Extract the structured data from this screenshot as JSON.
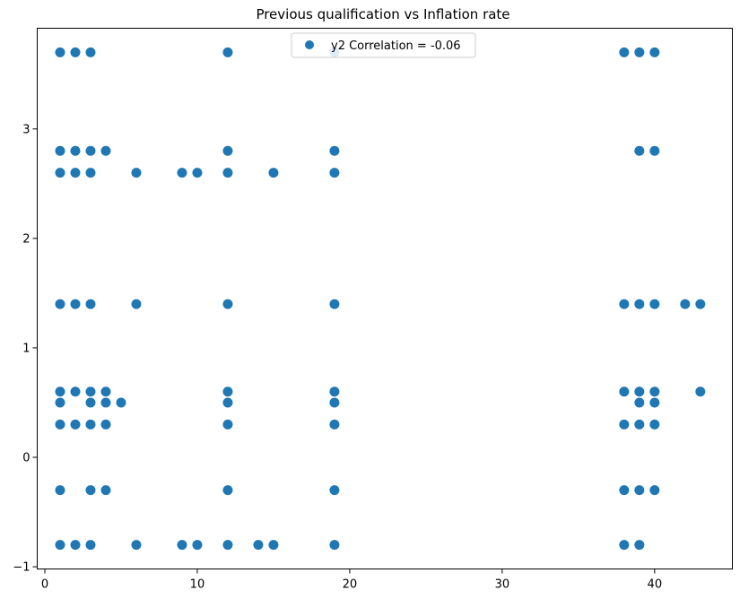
{
  "chart_data": {
    "type": "scatter",
    "title": "Previous qualification vs Inflation rate",
    "xlabel": "",
    "ylabel": "",
    "xlim": [
      -0.5,
      45.1
    ],
    "ylim": [
      -1.02,
      3.92
    ],
    "xticks": [
      0,
      10,
      20,
      30,
      40
    ],
    "yticks": [
      -1,
      0,
      1,
      2,
      3
    ],
    "grid": false,
    "legend_position": "upper-center",
    "series": [
      {
        "name": "y2 Correlation = -0.06",
        "color": "#1f77b4",
        "points": [
          [
            1,
            3.7
          ],
          [
            2,
            3.7
          ],
          [
            3,
            3.7
          ],
          [
            12,
            3.7
          ],
          [
            19,
            3.7
          ],
          [
            38,
            3.7
          ],
          [
            39,
            3.7
          ],
          [
            40,
            3.7
          ],
          [
            1,
            2.8
          ],
          [
            2,
            2.8
          ],
          [
            3,
            2.8
          ],
          [
            4,
            2.8
          ],
          [
            12,
            2.8
          ],
          [
            19,
            2.8
          ],
          [
            39,
            2.8
          ],
          [
            40,
            2.8
          ],
          [
            1,
            2.6
          ],
          [
            2,
            2.6
          ],
          [
            3,
            2.6
          ],
          [
            6,
            2.6
          ],
          [
            9,
            2.6
          ],
          [
            10,
            2.6
          ],
          [
            12,
            2.6
          ],
          [
            15,
            2.6
          ],
          [
            19,
            2.6
          ],
          [
            1,
            1.4
          ],
          [
            2,
            1.4
          ],
          [
            3,
            1.4
          ],
          [
            6,
            1.4
          ],
          [
            12,
            1.4
          ],
          [
            19,
            1.4
          ],
          [
            38,
            1.4
          ],
          [
            39,
            1.4
          ],
          [
            40,
            1.4
          ],
          [
            42,
            1.4
          ],
          [
            43,
            1.4
          ],
          [
            1,
            0.6
          ],
          [
            2,
            0.6
          ],
          [
            3,
            0.6
          ],
          [
            4,
            0.6
          ],
          [
            12,
            0.6
          ],
          [
            19,
            0.6
          ],
          [
            38,
            0.6
          ],
          [
            39,
            0.6
          ],
          [
            40,
            0.6
          ],
          [
            43,
            0.6
          ],
          [
            1,
            0.5
          ],
          [
            3,
            0.5
          ],
          [
            4,
            0.5
          ],
          [
            5,
            0.5
          ],
          [
            12,
            0.5
          ],
          [
            19,
            0.5
          ],
          [
            39,
            0.5
          ],
          [
            40,
            0.5
          ],
          [
            1,
            0.3
          ],
          [
            2,
            0.3
          ],
          [
            3,
            0.3
          ],
          [
            4,
            0.3
          ],
          [
            12,
            0.3
          ],
          [
            19,
            0.3
          ],
          [
            38,
            0.3
          ],
          [
            39,
            0.3
          ],
          [
            40,
            0.3
          ],
          [
            1,
            -0.3
          ],
          [
            3,
            -0.3
          ],
          [
            4,
            -0.3
          ],
          [
            12,
            -0.3
          ],
          [
            19,
            -0.3
          ],
          [
            38,
            -0.3
          ],
          [
            39,
            -0.3
          ],
          [
            40,
            -0.3
          ],
          [
            1,
            -0.8
          ],
          [
            2,
            -0.8
          ],
          [
            3,
            -0.8
          ],
          [
            6,
            -0.8
          ],
          [
            9,
            -0.8
          ],
          [
            10,
            -0.8
          ],
          [
            12,
            -0.8
          ],
          [
            14,
            -0.8
          ],
          [
            15,
            -0.8
          ],
          [
            19,
            -0.8
          ],
          [
            38,
            -0.8
          ],
          [
            39,
            -0.8
          ]
        ]
      }
    ]
  }
}
